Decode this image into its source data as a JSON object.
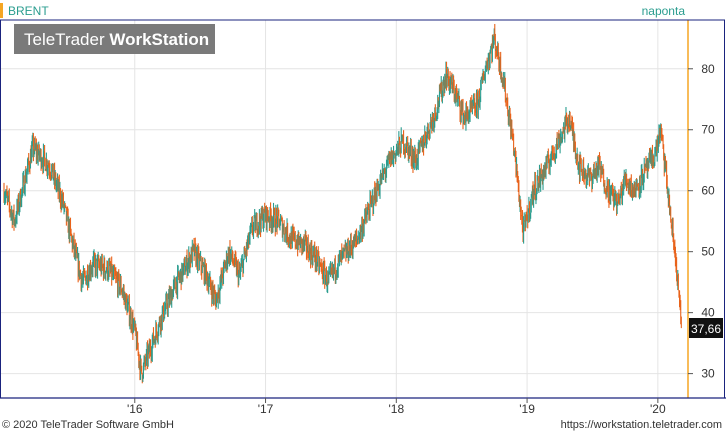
{
  "chart_data": {
    "type": "candlestick",
    "instrument": "BRENT",
    "period_label": "naponta",
    "watermark": {
      "brand_light": "TeleTrader ",
      "brand_bold": "WorkStation"
    },
    "last_price": "37,66",
    "x_ticks": [
      "'16",
      "'17",
      "'18",
      "'19",
      "'20"
    ],
    "y_ticks": [
      30,
      40,
      50,
      60,
      70,
      80
    ],
    "ylim": [
      26,
      88
    ],
    "xlim": [
      2015.0,
      2020.2
    ],
    "grid": true,
    "colors": {
      "up": "#2a9d8f",
      "down": "#e8621a",
      "accent": "#f5a623",
      "border": "#1a237e"
    },
    "series": [
      {
        "name": "BRENT",
        "points": [
          [
            2015.0,
            60
          ],
          [
            2015.08,
            55
          ],
          [
            2015.22,
            67
          ],
          [
            2015.35,
            64
          ],
          [
            2015.45,
            58
          ],
          [
            2015.55,
            49
          ],
          [
            2015.6,
            45
          ],
          [
            2015.68,
            48
          ],
          [
            2015.8,
            47
          ],
          [
            2015.9,
            44
          ],
          [
            2016.0,
            37
          ],
          [
            2016.05,
            30
          ],
          [
            2016.1,
            33
          ],
          [
            2016.2,
            39
          ],
          [
            2016.3,
            44
          ],
          [
            2016.4,
            48
          ],
          [
            2016.45,
            50
          ],
          [
            2016.55,
            46
          ],
          [
            2016.62,
            42
          ],
          [
            2016.72,
            50
          ],
          [
            2016.8,
            46
          ],
          [
            2016.9,
            54
          ],
          [
            2017.0,
            56
          ],
          [
            2017.1,
            55
          ],
          [
            2017.2,
            52
          ],
          [
            2017.3,
            51
          ],
          [
            2017.38,
            49
          ],
          [
            2017.48,
            45
          ],
          [
            2017.55,
            48
          ],
          [
            2017.7,
            52
          ],
          [
            2017.85,
            60
          ],
          [
            2017.95,
            65
          ],
          [
            2018.05,
            68
          ],
          [
            2018.15,
            65
          ],
          [
            2018.3,
            73
          ],
          [
            2018.38,
            79
          ],
          [
            2018.45,
            76
          ],
          [
            2018.52,
            72
          ],
          [
            2018.62,
            74
          ],
          [
            2018.68,
            80
          ],
          [
            2018.75,
            85
          ],
          [
            2018.82,
            78
          ],
          [
            2018.9,
            67
          ],
          [
            2018.97,
            53
          ],
          [
            2019.05,
            60
          ],
          [
            2019.15,
            64
          ],
          [
            2019.28,
            70
          ],
          [
            2019.32,
            72
          ],
          [
            2019.4,
            64
          ],
          [
            2019.48,
            62
          ],
          [
            2019.55,
            64
          ],
          [
            2019.62,
            60
          ],
          [
            2019.7,
            58
          ],
          [
            2019.75,
            62
          ],
          [
            2019.82,
            60
          ],
          [
            2019.9,
            63
          ],
          [
            2019.98,
            66
          ],
          [
            2020.02,
            70
          ],
          [
            2020.06,
            63
          ],
          [
            2020.1,
            55
          ],
          [
            2020.14,
            48
          ],
          [
            2020.18,
            37.66
          ]
        ]
      }
    ]
  },
  "footer": {
    "copyright": "© 2020 TeleTrader Software GmbH",
    "url": "https://workstation.teletrader.com"
  }
}
